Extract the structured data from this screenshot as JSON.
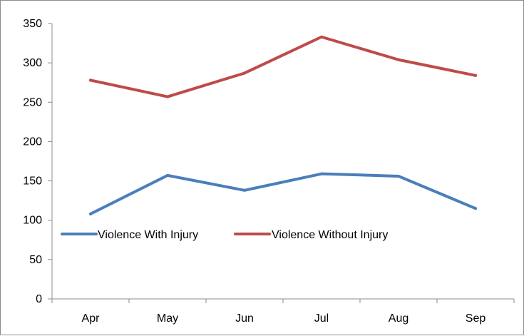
{
  "chart_data": {
    "type": "line",
    "categories": [
      "Apr",
      "May",
      "Jun",
      "Jul",
      "Aug",
      "Sep"
    ],
    "series": [
      {
        "name": "Violence With Injury",
        "values": [
          108,
          157,
          138,
          159,
          156,
          115
        ],
        "color": "#4a7ebb"
      },
      {
        "name": "Violence Without Injury",
        "values": [
          278,
          257,
          287,
          333,
          304,
          284
        ],
        "color": "#be4b48"
      }
    ],
    "title": "",
    "xlabel": "",
    "ylabel": "",
    "ylim": [
      0,
      350
    ],
    "yticks": [
      0,
      50,
      100,
      150,
      200,
      250,
      300,
      350
    ],
    "grid": false,
    "legend_position": "inside-left"
  }
}
